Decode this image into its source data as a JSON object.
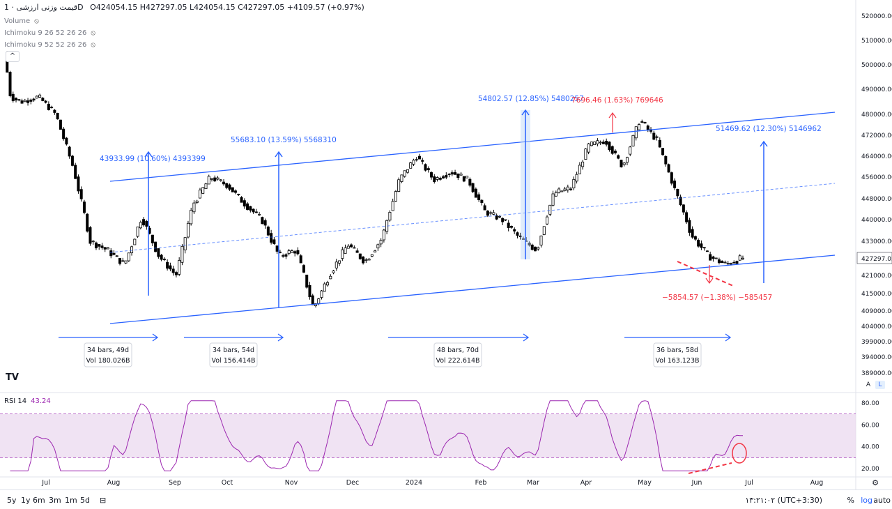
{
  "header": {
    "title": "قیمت وزنی ارزشی · 1D",
    "ohlc": "O424054.15 H427297.05 L424054.15 C427297.05 +4109.57 (+0.97%)",
    "indicators": [
      "Volume",
      "Ichimoku 9 26 52 26 26",
      "Ichimoku 9 52 52 26 26"
    ],
    "collapse_glyph": "^"
  },
  "colors": {
    "bull": "#ffffff",
    "bear": "#000000",
    "channel": "#2962ff",
    "measure_up": "#2962ff",
    "measure_down": "#f23645",
    "rsi": "#9c27b0",
    "rsi_band": "#e9d7ee"
  },
  "chart_data": {
    "type": "candlestick",
    "title": "قیمت وزنی ارزشی",
    "interval": "1D",
    "last_price": 427297.05,
    "price_axis": {
      "ticks": [
        "520000.00",
        "510000.00",
        "500000.00",
        "490000.00",
        "480000.00",
        "472000.00",
        "464000.00",
        "456000.00",
        "448000.00",
        "440000.00",
        "433000.00",
        "427297.05",
        "421000.00",
        "415000.00",
        "409000.00",
        "404000.00",
        "399000.00",
        "394000.00",
        "389000.00"
      ],
      "last_label": "427297.05",
      "scale": "log"
    },
    "time_axis": [
      "Jul",
      "Aug",
      "Sep",
      "Oct",
      "Nov",
      "Dec",
      "2024",
      "Feb",
      "Mar",
      "Apr",
      "May",
      "Jun",
      "Jul",
      "Aug"
    ],
    "series_close_approx": [
      {
        "t": "Jul",
        "v": 488000
      },
      {
        "t": "Jul",
        "v": 485000
      },
      {
        "t": "Jul",
        "v": 487000
      },
      {
        "t": "Jul",
        "v": 480000
      },
      {
        "t": "Jul-end",
        "v": 460000
      },
      {
        "t": "Aug",
        "v": 433000
      },
      {
        "t": "Aug",
        "v": 430000
      },
      {
        "t": "Aug",
        "v": 425000
      },
      {
        "t": "Aug-mid",
        "v": 441000
      },
      {
        "t": "Aug-mid",
        "v": 428000
      },
      {
        "t": "Aug-end",
        "v": 421000
      },
      {
        "t": "Sep",
        "v": 446000
      },
      {
        "t": "Sep",
        "v": 456000
      },
      {
        "t": "Sep",
        "v": 453000
      },
      {
        "t": "Sep-end",
        "v": 446000
      },
      {
        "t": "Oct",
        "v": 440000
      },
      {
        "t": "Oct-mid",
        "v": 428000
      },
      {
        "t": "Oct-end",
        "v": 430000
      },
      {
        "t": "Oct-end",
        "v": 410000
      },
      {
        "t": "Nov",
        "v": 422000
      },
      {
        "t": "Nov-mid",
        "v": 432000
      },
      {
        "t": "Nov-end",
        "v": 426000
      },
      {
        "t": "Dec",
        "v": 434000
      },
      {
        "t": "Dec",
        "v": 455000
      },
      {
        "t": "Dec-mid",
        "v": 464000
      },
      {
        "t": "Dec-end",
        "v": 455000
      },
      {
        "t": "2024",
        "v": 458000
      },
      {
        "t": "Jan-mid",
        "v": 455000
      },
      {
        "t": "Jan-end",
        "v": 443000
      },
      {
        "t": "Feb",
        "v": 440000
      },
      {
        "t": "Feb-mid",
        "v": 434000
      },
      {
        "t": "Feb-end",
        "v": 430000
      },
      {
        "t": "Mar",
        "v": 450000
      },
      {
        "t": "Mar-mid",
        "v": 452000
      },
      {
        "t": "Mar-end",
        "v": 468000
      },
      {
        "t": "Apr",
        "v": 470000
      },
      {
        "t": "Apr-mid",
        "v": 460000
      },
      {
        "t": "Apr-end",
        "v": 478000
      },
      {
        "t": "May",
        "v": 470000
      },
      {
        "t": "May-mid",
        "v": 452000
      },
      {
        "t": "May-end",
        "v": 435000
      },
      {
        "t": "Jun",
        "v": 428000
      },
      {
        "t": "Jun-mid",
        "v": 425000
      },
      {
        "t": "Jun-end",
        "v": 427297.05
      }
    ],
    "annotations": {
      "measures_up": [
        {
          "label": "43933.99 (10.60%) 4393399"
        },
        {
          "label": "55683.10 (13.59%) 5568310"
        },
        {
          "label": "54802.57 (12.85%) 5480257"
        },
        {
          "label": "51469.62 (12.30%) 5146962"
        }
      ],
      "measures_red": [
        {
          "label": "7696.46 (1.63%) 769646"
        },
        {
          "label": "−5854.57 (−1.38%) −585457"
        }
      ],
      "ranges": [
        {
          "bars": "34 bars, 49d",
          "vol": "Vol 180.026B"
        },
        {
          "bars": "34 bars, 54d",
          "vol": "Vol 156.414B"
        },
        {
          "bars": "48 bars, 70d",
          "vol": "Vol 222.614B"
        },
        {
          "bars": "36 bars, 58d",
          "vol": "Vol 163.123B"
        }
      ]
    },
    "rsi": {
      "label": "RSI 14",
      "value": "43.24",
      "ticks": [
        "80.00",
        "60.00",
        "40.00",
        "20.00"
      ],
      "upper": 70,
      "lower": 30,
      "ylim": [
        15,
        85
      ]
    }
  },
  "bottom": {
    "timeframes": [
      "5y",
      "1y",
      "6m",
      "3m",
      "1m",
      "5d"
    ],
    "clock": "۱۳:۲۱:۰۲ (UTC+3:30)",
    "percent": "%",
    "log": "log",
    "auto": "auto",
    "axis_a": "A",
    "axis_l": "L",
    "logo": "TV"
  }
}
